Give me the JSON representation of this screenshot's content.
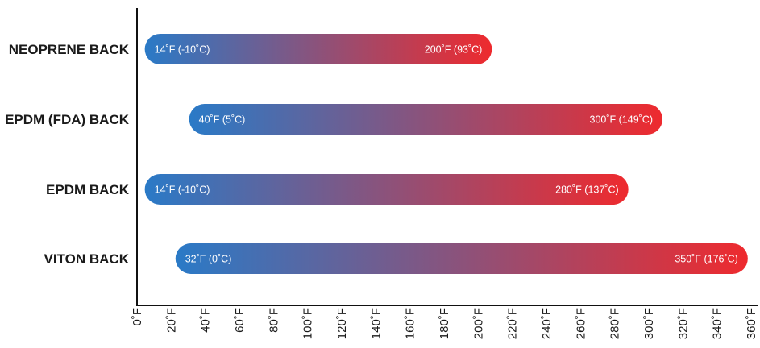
{
  "chart_data": {
    "type": "bar",
    "orientation": "horizontal",
    "style": "range",
    "categories": [
      "NEOPRENE BACK",
      "EPDM (FDA) BACK",
      "EPDM BACK",
      "VITON BACK"
    ],
    "ranges": [
      {
        "category": "NEOPRENE BACK",
        "min": 14,
        "max": 200,
        "min_label": "14˚F (-10˚C)",
        "max_label": "200˚F (93˚C)"
      },
      {
        "category": "EPDM (FDA) BACK",
        "min": 40,
        "max": 300,
        "min_label": "40˚F (5˚C)",
        "max_label": "300˚F (149˚C)"
      },
      {
        "category": "EPDM BACK",
        "min": 14,
        "max": 280,
        "min_label": "14˚F (-10˚C)",
        "max_label": "280˚F (137˚C)"
      },
      {
        "category": "VITON BACK",
        "min": 32,
        "max": 350,
        "min_label": "32˚F (0˚C)",
        "max_label": "350˚F (176˚C)"
      }
    ],
    "x_ticks": [
      "0˚F",
      "20˚F",
      "40˚F",
      "60˚F",
      "80˚F",
      "100˚F",
      "120˚F",
      "140˚F",
      "160˚F",
      "180˚F",
      "200˚F",
      "220˚F",
      "240˚F",
      "260˚F",
      "280˚F",
      "300˚F",
      "320˚F",
      "340˚F",
      "360˚F"
    ],
    "xlim": [
      0,
      360
    ],
    "gradient_colors": {
      "cold": "#2a7ac7",
      "hot": "#ee2a2e"
    },
    "grid": false,
    "title": "",
    "xlabel": "",
    "ylabel": ""
  }
}
